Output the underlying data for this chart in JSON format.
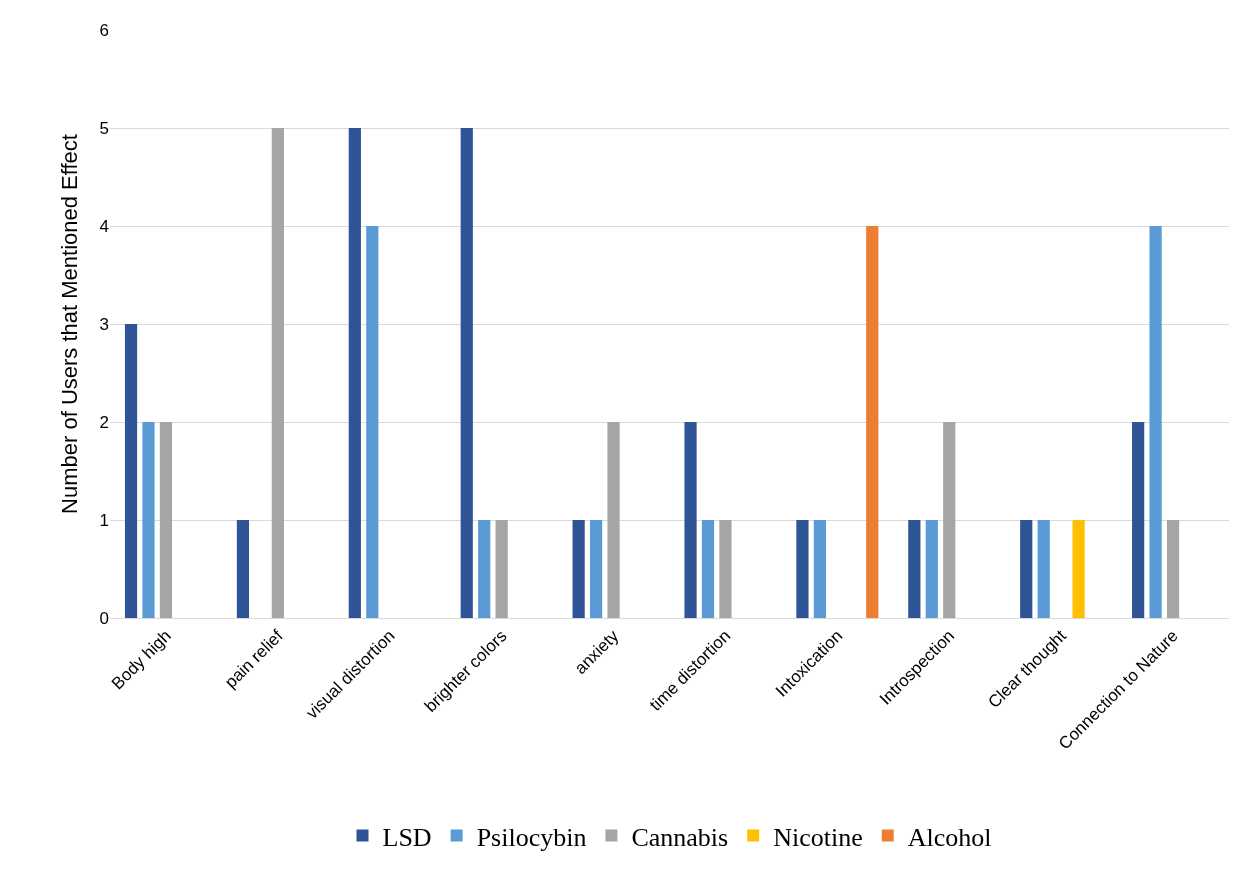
{
  "chart_data": {
    "type": "bar",
    "ylabel": "Number of Users that Mentioned Effect",
    "categories": [
      "Body high",
      "pain relief",
      "visual distortion",
      "brighter colors",
      "anxiety",
      "time distortion",
      "Intoxication",
      "Introspection",
      "Clear thought",
      "Connection to Nature"
    ],
    "series": [
      {
        "name": "LSD",
        "color": "#2f5597",
        "values": [
          3,
          1,
          5,
          5,
          1,
          2,
          1,
          1,
          1,
          2
        ]
      },
      {
        "name": "Psilocybin",
        "color": "#5b9bd5",
        "values": [
          2,
          0,
          4,
          1,
          1,
          1,
          1,
          1,
          1,
          4
        ]
      },
      {
        "name": "Cannabis",
        "color": "#a5a5a5",
        "values": [
          2,
          5,
          0,
          1,
          2,
          1,
          0,
          2,
          0,
          1
        ]
      },
      {
        "name": "Nicotine",
        "color": "#ffc000",
        "values": [
          0,
          0,
          0,
          0,
          0,
          0,
          0,
          0,
          1,
          0
        ]
      },
      {
        "name": "Alcohol",
        "color": "#ed7d31",
        "values": [
          0,
          0,
          0,
          0,
          0,
          0,
          4,
          0,
          0,
          0
        ]
      }
    ],
    "ylim": [
      0,
      6
    ],
    "yticks": [
      0,
      1,
      2,
      3,
      4,
      5,
      6
    ],
    "grid": "y",
    "legend": "bottom"
  }
}
